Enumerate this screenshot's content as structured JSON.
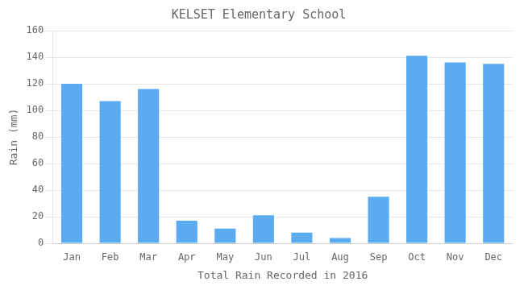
{
  "chart_data": {
    "type": "bar",
    "title": "KELSET Elementary School",
    "xlabel": "Total Rain Recorded in 2016",
    "ylabel": "Rain (mm)",
    "categories": [
      "Jan",
      "Feb",
      "Mar",
      "Apr",
      "May",
      "Jun",
      "Jul",
      "Aug",
      "Sep",
      "Oct",
      "Nov",
      "Dec"
    ],
    "values": [
      120,
      107,
      116,
      17,
      11,
      21,
      8,
      4,
      35,
      141,
      136,
      135
    ],
    "color": "#5aabef",
    "ylim": [
      0,
      160
    ],
    "yticks": [
      0,
      20,
      40,
      60,
      80,
      100,
      120,
      140,
      160
    ],
    "grid": true
  }
}
